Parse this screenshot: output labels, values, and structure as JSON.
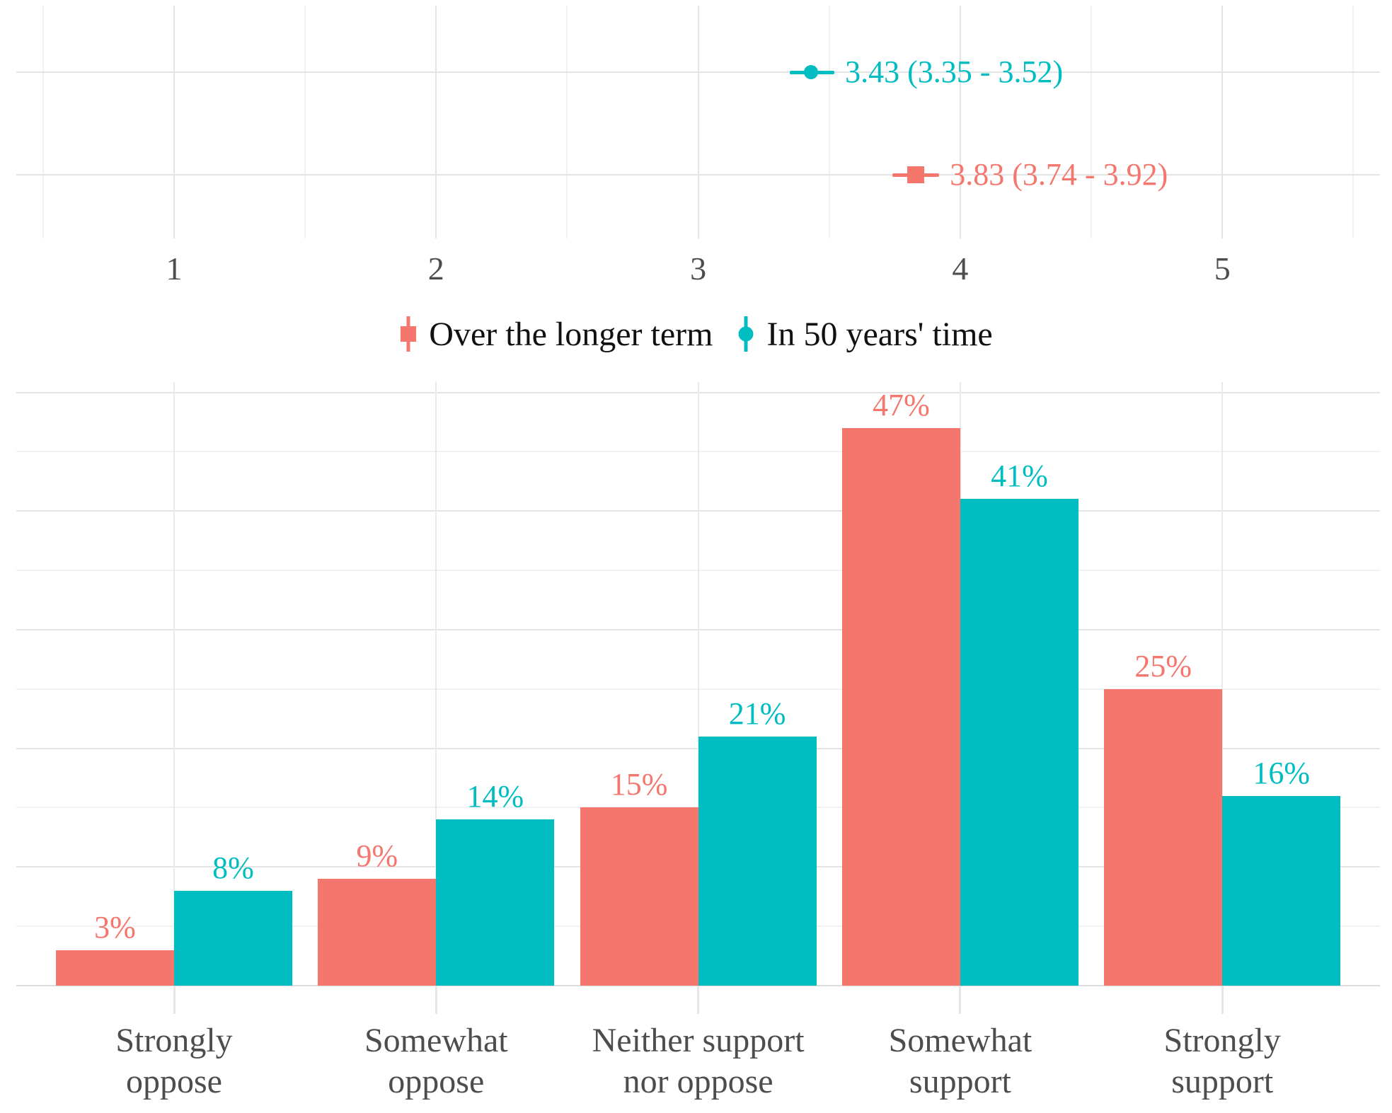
{
  "colors": {
    "red": "#F5766D",
    "teal": "#00BDC2",
    "axis_text": "#4d4d4d",
    "legend_text": "#111111",
    "grid_major": "#e4e4e4",
    "grid_minor": "#f2f2f2",
    "background": "#ffffff"
  },
  "legend": {
    "items": [
      {
        "label": "Over the longer term",
        "color_key": "red",
        "marker": "square"
      },
      {
        "label": "In 50 years' time",
        "color_key": "teal",
        "marker": "circle"
      }
    ]
  },
  "chart_data": [
    {
      "type": "scatter",
      "subtype": "pointrange-ci",
      "title": "",
      "xlabel": "",
      "ylabel": "",
      "xlim": [
        0.4,
        5.6
      ],
      "x_ticks": [
        "1",
        "2",
        "3",
        "4",
        "5"
      ],
      "x_tick_values": [
        1,
        2,
        3,
        4,
        5
      ],
      "grid": "on",
      "series": [
        {
          "name": "In 50 years' time",
          "color_key": "teal",
          "marker": "circle",
          "mean": 3.43,
          "ci_low": 3.35,
          "ci_high": 3.52,
          "label": "3.43 (3.35 - 3.52)"
        },
        {
          "name": "Over the longer term",
          "color_key": "red",
          "marker": "square",
          "mean": 3.83,
          "ci_low": 3.74,
          "ci_high": 3.92,
          "label": "3.83 (3.74 - 3.92)"
        }
      ]
    },
    {
      "type": "bar",
      "title": "",
      "xlabel": "",
      "ylabel": "",
      "ylim": [
        0,
        51
      ],
      "grid": "on",
      "grid_major_step_pct": 10,
      "grid_minor_step_pct": 5,
      "legend_position": "top",
      "categories": [
        [
          "Strongly",
          "oppose"
        ],
        [
          "Somewhat",
          "oppose"
        ],
        [
          "Neither support",
          "nor oppose"
        ],
        [
          "Somewhat",
          "support"
        ],
        [
          "Strongly",
          "support"
        ]
      ],
      "series": [
        {
          "name": "Over the longer term",
          "color_key": "red",
          "values": [
            3,
            9,
            15,
            47,
            25
          ],
          "labels": [
            "3%",
            "9%",
            "15%",
            "47%",
            "25%"
          ]
        },
        {
          "name": "In 50 years' time",
          "color_key": "teal",
          "values": [
            8,
            14,
            21,
            41,
            16
          ],
          "labels": [
            "8%",
            "14%",
            "21%",
            "41%",
            "16%"
          ]
        }
      ]
    }
  ]
}
